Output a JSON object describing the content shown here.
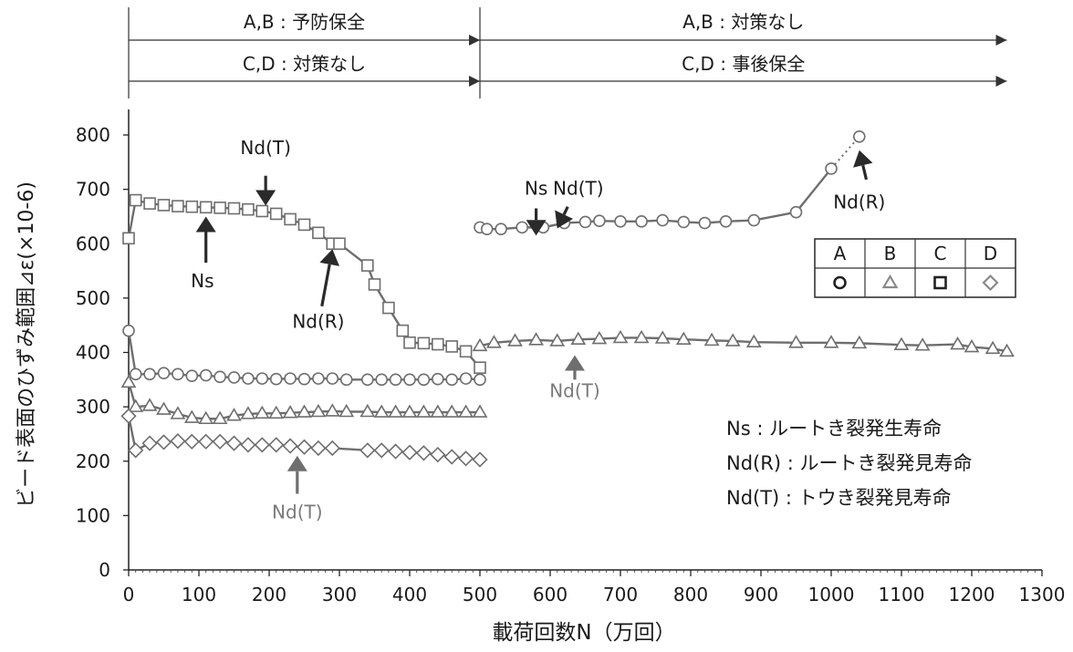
{
  "chart_data": {
    "type": "line",
    "title": "",
    "xlabel": "載荷回数N（万回）",
    "ylabel": "ビード表面のひずみ範囲⊿ε(×10-6)",
    "xlim": [
      0,
      1300
    ],
    "ylim": [
      0,
      800
    ],
    "x_ticks": [
      0,
      100,
      200,
      300,
      400,
      500,
      600,
      700,
      800,
      900,
      1000,
      1100,
      1200,
      1300
    ],
    "y_ticks": [
      0,
      100,
      200,
      300,
      400,
      500,
      600,
      700,
      800
    ],
    "grid": false,
    "colors": {
      "series": "#6e6e6e",
      "text": "#1a1a1a",
      "gray_label": "#7a7a7a",
      "arrow_dark": "#2a2a2a",
      "arrow_gray": "#6e6e6e"
    },
    "phases": [
      {
        "label": "A,B : 予防保全",
        "x_start": 0,
        "x_end": 500
      },
      {
        "label": "C,D : 対策なし",
        "x_start": 0,
        "x_end": 500
      },
      {
        "label": "A,B : 対策なし",
        "x_start": 500,
        "x_end": 1250
      },
      {
        "label": "C,D : 事後保全",
        "x_start": 500,
        "x_end": 1250
      }
    ],
    "legend_table": {
      "headers": [
        "A",
        "B",
        "C",
        "D"
      ],
      "markers": [
        "circle",
        "triangle",
        "square",
        "diamond"
      ],
      "placement": "right-middle"
    },
    "series": [
      {
        "name": "A",
        "marker": "circle",
        "segments": [
          {
            "x": [
              0,
              10,
              30,
              50,
              70,
              90,
              110,
              130,
              150,
              170,
              190,
              210,
              230,
              250,
              270,
              290,
              310,
              340,
              360,
              380,
              400,
              420,
              440,
              460,
              480,
              500
            ],
            "y": [
              440,
              360,
              360,
              362,
              360,
              357,
              358,
              355,
              354,
              352,
              352,
              351,
              352,
              351,
              352,
              352,
              350,
              350,
              350,
              350,
              350,
              350,
              351,
              350,
              352,
              350
            ]
          },
          {
            "x": [
              500,
              510,
              530,
              560,
              590,
              620,
              650,
              670,
              700,
              730,
              760,
              790,
              820,
              850,
              890,
              950,
              1000
            ],
            "y": [
              630,
              627,
              627,
              630,
              630,
              638,
              640,
              642,
              641,
              641,
              643,
              640,
              638,
              641,
              643,
              658,
              738
            ]
          },
          {
            "x": [
              1000,
              1040
            ],
            "y": [
              738,
              797
            ],
            "dotted": true
          }
        ]
      },
      {
        "name": "B",
        "marker": "triangle",
        "segments": [
          {
            "x": [
              0,
              10,
              30,
              50,
              70,
              90,
              110,
              130,
              150,
              170,
              190,
              210,
              230,
              250,
              270,
              290,
              310,
              340,
              360,
              380,
              400,
              420,
              440,
              460,
              480,
              500
            ],
            "y": [
              345,
              300,
              302,
              295,
              287,
              280,
              278,
              278,
              284,
              287,
              288,
              288,
              289,
              290,
              291,
              292,
              291,
              291,
              290,
              290,
              290,
              290,
              290,
              290,
              290,
              290
            ]
          },
          {
            "x": [
              500,
              520,
              550,
              580,
              610,
              640,
              670,
              700,
              730,
              760,
              790,
              830,
              860,
              890,
              950,
              1000,
              1040,
              1100,
              1130,
              1180,
              1200,
              1230,
              1250
            ],
            "y": [
              412,
              418,
              421,
              423,
              421,
              424,
              425,
              427,
              427,
              426,
              424,
              422,
              421,
              419,
              418,
              418,
              417,
              414,
              413,
              415,
              410,
              407,
              402
            ]
          }
        ]
      },
      {
        "name": "C",
        "marker": "square",
        "segments": [
          {
            "x": [
              0,
              10,
              30,
              50,
              70,
              90,
              110,
              130,
              150,
              170,
              190,
              210,
              230,
              250,
              270,
              290,
              300,
              340,
              350,
              370,
              390,
              400,
              420,
              440,
              460,
              480,
              500
            ],
            "y": [
              610,
              680,
              674,
              671,
              669,
              668,
              667,
              666,
              665,
              663,
              660,
              655,
              645,
              635,
              620,
              600,
              600,
              560,
              525,
              482,
              440,
              418,
              417,
              415,
              411,
              402,
              372
            ]
          }
        ]
      },
      {
        "name": "D",
        "marker": "diamond",
        "segments": [
          {
            "x": [
              0,
              10,
              30,
              50,
              70,
              90,
              110,
              130,
              150,
              170,
              190,
              210,
              230,
              250,
              270,
              290,
              340,
              360,
              380,
              400,
              420,
              440,
              460,
              480,
              500
            ],
            "y": [
              283,
              220,
              233,
              235,
              237,
              236,
              236,
              236,
              233,
              230,
              230,
              230,
              228,
              226,
              224,
              224,
              220,
              220,
              218,
              216,
              215,
              212,
              208,
              205,
              203
            ]
          }
        ]
      }
    ],
    "annotations": [
      {
        "text": "Nd(T)",
        "color": "dark",
        "text_x": 195,
        "text_y": 765,
        "arrow_from": [
          195,
          725
        ],
        "arrow_to": [
          195,
          670
        ]
      },
      {
        "text": "Ns",
        "color": "dark",
        "text_x": 105,
        "text_y": 520,
        "arrow_from": [
          110,
          565
        ],
        "arrow_to": [
          110,
          650
        ]
      },
      {
        "text": "Nd(R)",
        "color": "dark",
        "text_x": 270,
        "text_y": 445,
        "arrow_from": [
          275,
          485
        ],
        "arrow_to": [
          290,
          590
        ]
      },
      {
        "text": "Ns",
        "color": "dark",
        "text_x": 580,
        "text_y": 690,
        "arrow_from": [
          580,
          665
        ],
        "arrow_to": [
          580,
          615
        ]
      },
      {
        "text": "Nd(T)",
        "color": "dark",
        "text_x": 640,
        "text_y": 690,
        "arrow_from": [
          625,
          668
        ],
        "arrow_to": [
          610,
          628
        ]
      },
      {
        "text": "Nd(R)",
        "color": "dark",
        "text_x": 1040,
        "text_y": 665,
        "arrow_from": [
          1050,
          718
        ],
        "arrow_to": [
          1040,
          772
        ]
      },
      {
        "text": "Nd(T)",
        "color": "gray",
        "text_x": 635,
        "text_y": 318,
        "arrow_from": [
          635,
          350
        ],
        "arrow_to": [
          635,
          395
        ]
      },
      {
        "text": "Nd(T)",
        "color": "gray",
        "text_x": 240,
        "text_y": 95,
        "arrow_from": [
          240,
          140
        ],
        "arrow_to": [
          240,
          210
        ]
      }
    ],
    "notes": [
      "Ns : ルートき裂発生寿命",
      "Nd(R) : ルートき裂発見寿命",
      "Nd(T) : トウき裂発見寿命"
    ]
  }
}
